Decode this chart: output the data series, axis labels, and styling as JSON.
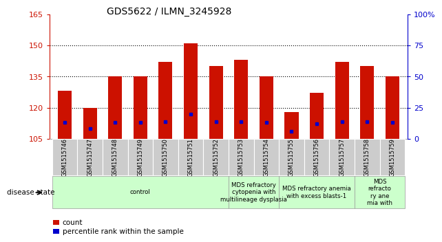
{
  "title": "GDS5622 / ILMN_3245928",
  "samples": [
    "GSM1515746",
    "GSM1515747",
    "GSM1515748",
    "GSM1515749",
    "GSM1515750",
    "GSM1515751",
    "GSM1515752",
    "GSM1515753",
    "GSM1515754",
    "GSM1515755",
    "GSM1515756",
    "GSM1515757",
    "GSM1515758",
    "GSM1515759"
  ],
  "counts": [
    128,
    120,
    135,
    135,
    142,
    151,
    140,
    143,
    135,
    118,
    127,
    142,
    140,
    135
  ],
  "percentile_ranks": [
    13,
    8,
    13,
    13,
    14,
    20,
    14,
    14,
    13,
    6,
    12,
    14,
    14,
    13
  ],
  "ymin": 105,
  "ymax": 165,
  "yticks_left": [
    105,
    120,
    135,
    150,
    165
  ],
  "right_yticks": [
    0,
    25,
    50,
    75,
    100
  ],
  "bar_color": "#cc1100",
  "dot_color": "#0000cc",
  "groups": [
    {
      "label": "control",
      "start": 0,
      "end": 7
    },
    {
      "label": "MDS refractory\ncytopenia with\nmultilineage dysplasia",
      "start": 7,
      "end": 9
    },
    {
      "label": "MDS refractory anemia\nwith excess blasts-1",
      "start": 9,
      "end": 12
    },
    {
      "label": "MDS\nrefracto\nry ane\nmia with",
      "start": 12,
      "end": 14
    }
  ],
  "legend_count_label": "count",
  "legend_pct_label": "percentile rank within the sample",
  "disease_state_label": "disease state"
}
